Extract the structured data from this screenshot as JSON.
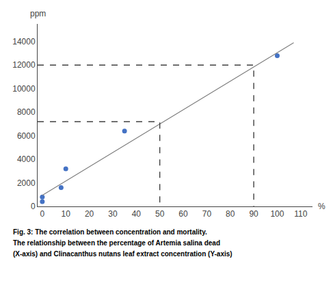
{
  "chart_data": {
    "type": "scatter",
    "xlabel": "%",
    "ylabel": "ppm",
    "annotations": [
      "Fig. 3: The correlation between concentration and mortality.",
      "The relationship between the percentage of Artemia salina dead",
      "(X-axis) and Clinacanthus nutans leaf extract concentration (Y-axis)"
    ],
    "series": [
      {
        "type": "scatter",
        "marker": "circle",
        "color": "#4472C4",
        "x": [
          0,
          0,
          8,
          10,
          35,
          100
        ],
        "values": [
          400,
          800,
          1600,
          3200,
          6400,
          12800
        ]
      },
      {
        "type": "line",
        "line_style": "solid",
        "color": "#7f7f7f",
        "x": [
          0,
          107
        ],
        "values": [
          950,
          13900
        ]
      },
      {
        "type": "drop_lines",
        "line_style": "dashed",
        "color": "#404040",
        "x": [
          50,
          90
        ],
        "values": [
          7200,
          12000
        ]
      }
    ],
    "xlim": [
      -2,
      115
    ],
    "ylim": [
      0,
      15500
    ],
    "xticks": [
      0,
      10,
      20,
      30,
      40,
      50,
      60,
      70,
      80,
      90,
      100,
      110
    ],
    "yticks": [
      0,
      2000,
      4000,
      6000,
      8000,
      10000,
      12000,
      14000
    ],
    "grid": false
  }
}
